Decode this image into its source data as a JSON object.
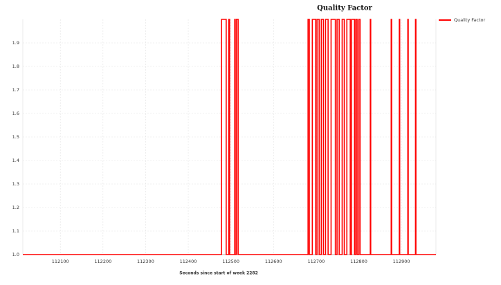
{
  "chart_data": {
    "type": "line",
    "title": "Quality Factor",
    "x_label": "Seconds since start of week 2282",
    "x": [
      112012,
      112478,
      112478,
      112489,
      112489,
      112495,
      112495,
      112497,
      112497,
      112509,
      112509,
      112510,
      112510,
      112513,
      112513,
      112517,
      112517,
      112681,
      112681,
      112684,
      112684,
      112691,
      112691,
      112699,
      112699,
      112702,
      112702,
      112707,
      112707,
      112712,
      112712,
      112717,
      112717,
      112722,
      112722,
      112728,
      112728,
      112735,
      112735,
      112745,
      112745,
      112749,
      112749,
      112754,
      112754,
      112761,
      112761,
      112766,
      112766,
      112772,
      112772,
      112780,
      112780,
      112783,
      112783,
      112790,
      112790,
      112793,
      112793,
      112796,
      112796,
      112800,
      112800,
      112803,
      112803,
      112827,
      112827,
      112828,
      112828,
      112876,
      112876,
      112877,
      112877,
      112895,
      112895,
      112896,
      112896,
      112915,
      112915,
      112916,
      112916,
      112933,
      112933,
      112934,
      112934,
      112981
    ],
    "series": [
      {
        "name": "Quality Factor",
        "color": "#ff0000",
        "values": [
          1,
          1,
          2,
          2,
          1,
          1,
          2,
          2,
          1,
          1,
          2,
          2,
          1,
          1,
          2,
          2,
          1,
          1,
          2,
          2,
          1,
          1,
          2,
          2,
          1,
          1,
          2,
          2,
          1,
          1,
          2,
          2,
          1,
          1,
          2,
          2,
          1,
          1,
          2,
          2,
          1,
          1,
          2,
          2,
          1,
          1,
          2,
          2,
          1,
          1,
          2,
          2,
          1,
          1,
          2,
          2,
          1,
          1,
          2,
          2,
          1,
          1,
          2,
          2,
          1,
          1,
          2,
          2,
          1,
          1,
          2,
          2,
          1,
          1,
          2,
          2,
          1,
          1,
          2,
          2,
          1,
          1,
          2,
          2,
          1,
          1
        ]
      }
    ],
    "xlim": [
      112012,
      112981
    ],
    "xticks": [
      112100,
      112200,
      112300,
      112400,
      112500,
      112600,
      112700,
      112800,
      112900
    ],
    "ylim": [
      1.0,
      2.0
    ],
    "yticks": [
      {
        "value": 1.0,
        "label": "1.0"
      },
      1.1,
      1.2,
      1.3,
      1.4,
      1.5,
      1.6,
      1.7,
      1.8,
      1.9
    ],
    "grid": true,
    "legend": "top-right"
  }
}
